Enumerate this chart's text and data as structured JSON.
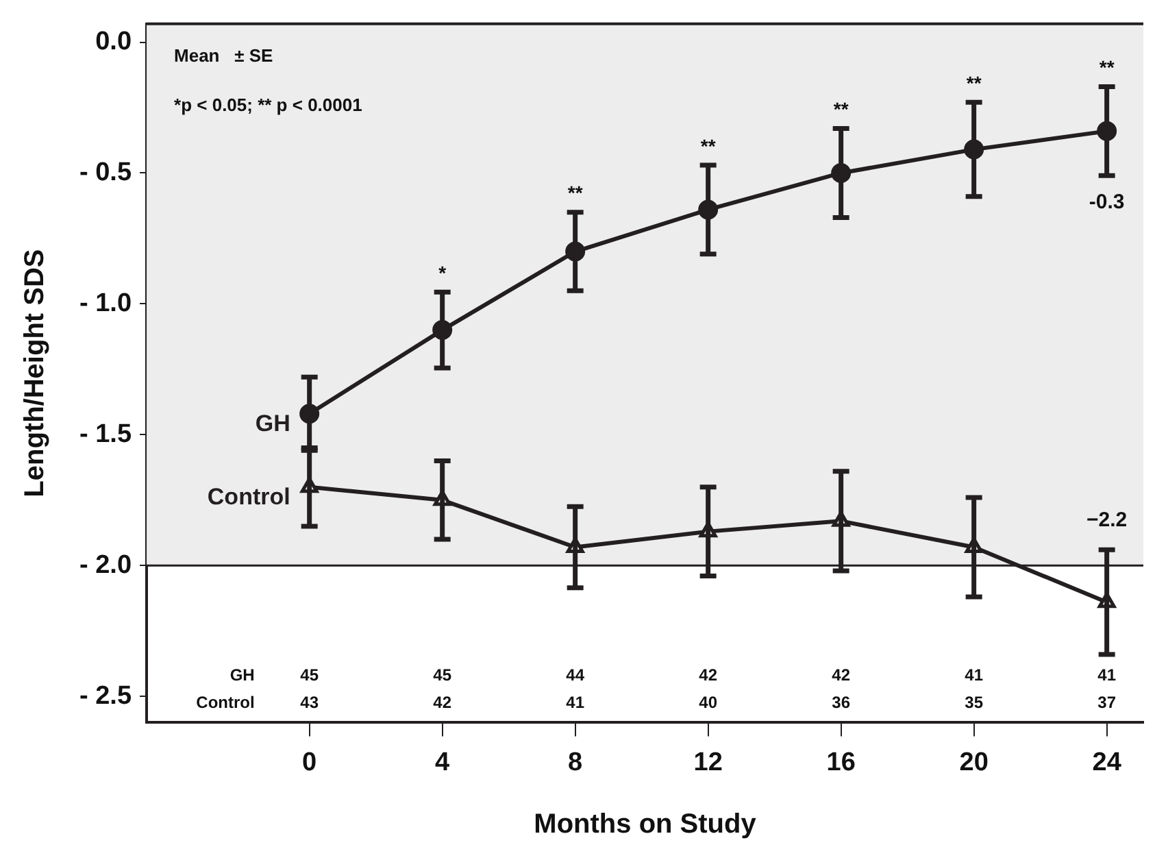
{
  "chart_data": {
    "type": "line",
    "xlabel": "Months on Study",
    "ylabel": "Length/Height SDS",
    "x": [
      0,
      4,
      8,
      12,
      16,
      20,
      24
    ],
    "series": [
      {
        "name": "GH",
        "color": "#231f20",
        "marker": "circle",
        "values": [
          -1.42,
          -1.1,
          -0.8,
          -0.64,
          -0.5,
          -0.41,
          -0.34
        ],
        "errors": [
          0.14,
          0.145,
          0.15,
          0.17,
          0.17,
          0.18,
          0.17
        ]
      },
      {
        "name": "Control",
        "color": "#231f20",
        "marker": "triangle",
        "values": [
          -1.7,
          -1.75,
          -1.93,
          -1.87,
          -1.83,
          -1.93,
          -2.14
        ],
        "errors": [
          0.15,
          0.15,
          0.155,
          0.17,
          0.19,
          0.19,
          0.2
        ]
      }
    ],
    "xlim": [
      -4.9,
      25.1
    ],
    "xticks": [
      0,
      4,
      8,
      12,
      16,
      20,
      24
    ],
    "ylim": [
      -2.6,
      0.07
    ],
    "yticks": [
      {
        "value": 0,
        "label": "0.0"
      },
      {
        "value": -0.5,
        "label": "- 0.5"
      },
      {
        "value": -1,
        "label": "- 1.0"
      },
      {
        "value": -1.5,
        "label": "- 1.5"
      },
      {
        "value": -2,
        "label": "- 2.0"
      },
      {
        "value": -2.5,
        "label": "- 2.5"
      }
    ],
    "ref_lines": [
      {
        "axis": "y",
        "value": -2,
        "color": "#231f20"
      }
    ],
    "bands": [
      {
        "axis": "y",
        "from": -2,
        "to": 0.07,
        "color": "#ededee"
      }
    ],
    "grid": false,
    "legend": false,
    "line_style": "solid",
    "annotations": [
      "Mean   ± SE",
      "*p < 0.05; ** p < 0.0001",
      {
        "text": "*",
        "x": 4,
        "y": -0.955
      },
      {
        "text": "**",
        "x": 8,
        "y": -0.65
      },
      {
        "text": "**",
        "x": 12,
        "y": -0.47
      },
      {
        "text": "**",
        "x": 16,
        "y": -0.33
      },
      {
        "text": "**",
        "x": 20,
        "y": -0.23
      },
      {
        "text": "**",
        "x": 24,
        "y": -0.17
      },
      {
        "text": "-0.3",
        "x": 24,
        "y": -0.51
      },
      {
        "text": "−2.2",
        "x": 24,
        "y": -1.94
      },
      "GH 45 45 44 42 42 41 41",
      "Control 43 42 41 40 36 35 37"
    ]
  }
}
